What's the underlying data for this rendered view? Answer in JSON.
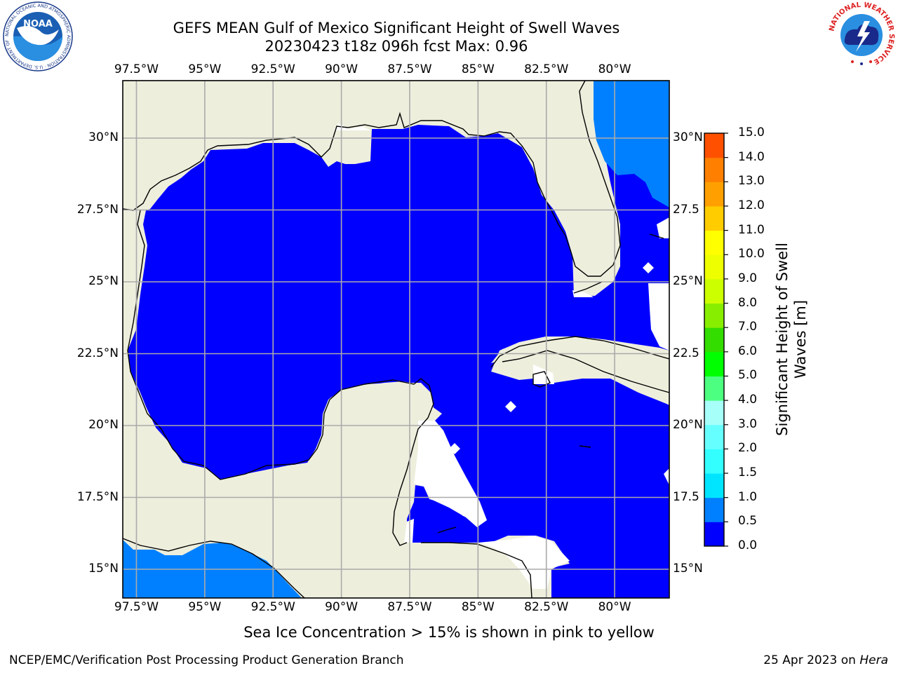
{
  "header": {
    "title_line1": "GEFS MEAN Gulf of Mexico Significant Height of Swell Waves",
    "title_line2": "20230423 t18z 096h fcst   Max: 0.96"
  },
  "logos": {
    "left": "NOAA",
    "left_ring": "NATIONAL OCEANIC AND ATMOSPHERIC ADMINISTRATION · U.S. DEPARTMENT OF COMMERCE",
    "right_ring": "NATIONAL WEATHER SERVICE"
  },
  "map": {
    "lon_ticks": [
      "97.5°W",
      "95°W",
      "92.5°W",
      "90°W",
      "87.5°W",
      "85°W",
      "82.5°W",
      "80°W"
    ],
    "lat_ticks_left": [
      "30°N",
      "27.5°N",
      "25°N",
      "22.5°N",
      "20°N",
      "17.5°N",
      "15°N"
    ],
    "lat_ticks_right": [
      "30°N",
      "27.5",
      "25°N",
      "22.5",
      "20°N",
      "17.5",
      "15°N"
    ],
    "lon_range": [
      -98,
      -78
    ],
    "lat_range": [
      14,
      32
    ],
    "land_color": "#eeeedd",
    "ocean_fill_color": "#0000ff",
    "grid": true
  },
  "colorbar": {
    "title": "Significant Height of Swell Waves [m]",
    "labels": [
      "15.0",
      "14.0",
      "13.0",
      "12.0",
      "11.0",
      "10.0",
      "9.0",
      "8.0",
      "7.0",
      "6.0",
      "5.0",
      "4.0",
      "3.0",
      "2.0",
      "1.5",
      "1.0",
      "0.5",
      "0.0"
    ],
    "levels": [
      0.0,
      0.5,
      1.0,
      1.5,
      2.0,
      3.0,
      4.0,
      5.0,
      6.0,
      7.0,
      8.0,
      9.0,
      10.0,
      11.0,
      12.0,
      13.0,
      14.0,
      15.0
    ],
    "colors": [
      "#0000ff",
      "#0080ff",
      "#00e5ff",
      "#33ffff",
      "#66ffff",
      "#a6fff9",
      "#4cff80",
      "#00ff00",
      "#33dd00",
      "#88ee00",
      "#ccff00",
      "#eeff00",
      "#ffff00",
      "#ffcc00",
      "#ffa000",
      "#ff8000",
      "#ff5000",
      "#ff2000"
    ]
  },
  "note": "Sea Ice Concentration > 15% is shown in pink to yellow",
  "footer": {
    "left": "NCEP/EMC/Verification Post Processing Product Generation Branch",
    "date": "25 Apr 2023 on",
    "host": "Hera"
  }
}
